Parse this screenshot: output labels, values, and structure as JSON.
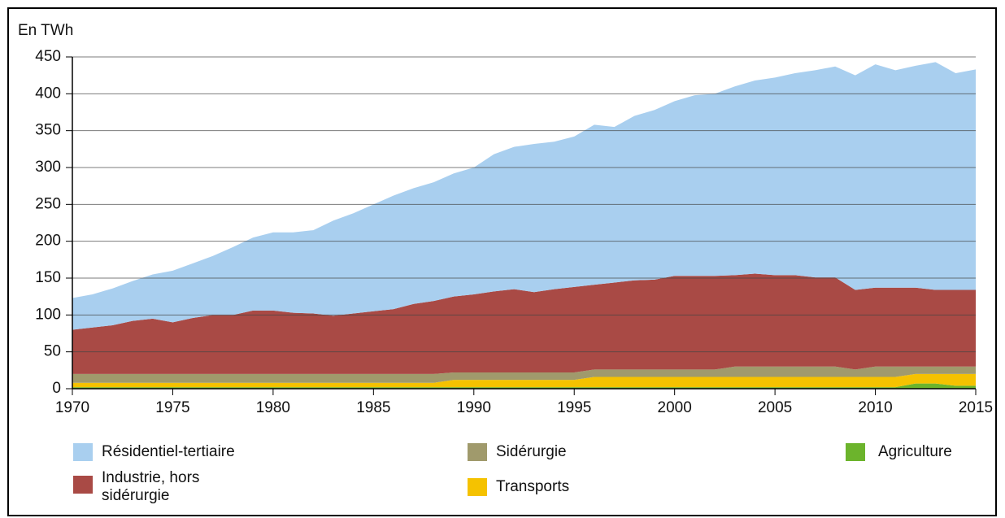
{
  "chart_data": {
    "type": "area",
    "stacked": true,
    "y_unit_label": "En TWh",
    "x": [
      1970,
      1971,
      1972,
      1973,
      1974,
      1975,
      1976,
      1977,
      1978,
      1979,
      1980,
      1981,
      1982,
      1983,
      1984,
      1985,
      1986,
      1987,
      1988,
      1989,
      1990,
      1991,
      1992,
      1993,
      1994,
      1995,
      1996,
      1997,
      1998,
      1999,
      2000,
      2001,
      2002,
      2003,
      2004,
      2005,
      2006,
      2007,
      2008,
      2009,
      2010,
      2011,
      2012,
      2013,
      2014,
      2015
    ],
    "xlim": [
      1970,
      2015
    ],
    "xticks": [
      1970,
      1975,
      1980,
      1985,
      1990,
      1995,
      2000,
      2005,
      2010,
      2015
    ],
    "ylim": [
      0,
      450
    ],
    "yticks": [
      0,
      50,
      100,
      150,
      200,
      250,
      300,
      350,
      400,
      450
    ],
    "grid": true,
    "series": [
      {
        "name": "Agriculture",
        "color": "#6cb42c",
        "values": [
          2,
          2,
          2,
          2,
          2,
          2,
          2,
          2,
          2,
          2,
          2,
          2,
          2,
          2,
          2,
          2,
          2,
          2,
          2,
          2,
          2,
          2,
          2,
          2,
          2,
          2,
          2,
          2,
          2,
          2,
          2,
          2,
          2,
          2,
          2,
          2,
          2,
          2,
          2,
          2,
          2,
          2,
          7,
          7,
          4,
          4
        ]
      },
      {
        "name": "Transports",
        "color": "#f5c200",
        "values": [
          6,
          6,
          6,
          6,
          6,
          6,
          6,
          6,
          6,
          6,
          6,
          6,
          6,
          6,
          6,
          6,
          6,
          6,
          6,
          10,
          10,
          10,
          10,
          10,
          10,
          10,
          14,
          14,
          14,
          14,
          14,
          14,
          14,
          14,
          14,
          14,
          14,
          14,
          14,
          14,
          14,
          14,
          13,
          13,
          16,
          16
        ]
      },
      {
        "name": "Sidérurgie",
        "color": "#a09a6c",
        "values": [
          12,
          12,
          12,
          12,
          12,
          12,
          12,
          12,
          12,
          12,
          12,
          12,
          12,
          12,
          12,
          12,
          12,
          12,
          12,
          10,
          10,
          10,
          10,
          10,
          10,
          10,
          10,
          10,
          10,
          10,
          10,
          10,
          10,
          14,
          14,
          14,
          14,
          14,
          14,
          10,
          14,
          14,
          10,
          10,
          10,
          10
        ]
      },
      {
        "name": "Industrie, hors sidérurgie",
        "color": "#a94a45",
        "values": [
          60,
          63,
          66,
          72,
          75,
          70,
          76,
          80,
          80,
          86,
          86,
          83,
          82,
          79,
          82,
          85,
          88,
          95,
          99,
          103,
          106,
          110,
          113,
          109,
          113,
          116,
          115,
          118,
          121,
          122,
          127,
          127,
          127,
          124,
          126,
          124,
          124,
          121,
          121,
          108,
          107,
          107,
          107,
          104,
          104,
          104
        ]
      },
      {
        "name": "Résidentiel-tertiaire",
        "color": "#a9cfef",
        "values": [
          43,
          45,
          50,
          54,
          60,
          70,
          74,
          80,
          92,
          99,
          106,
          109,
          113,
          129,
          136,
          145,
          154,
          157,
          161,
          167,
          172,
          186,
          193,
          201,
          200,
          204,
          217,
          211,
          223,
          230,
          237,
          245,
          247,
          256,
          262,
          268,
          274,
          281,
          286,
          291,
          303,
          295,
          301,
          309,
          294,
          299
        ]
      }
    ]
  }
}
